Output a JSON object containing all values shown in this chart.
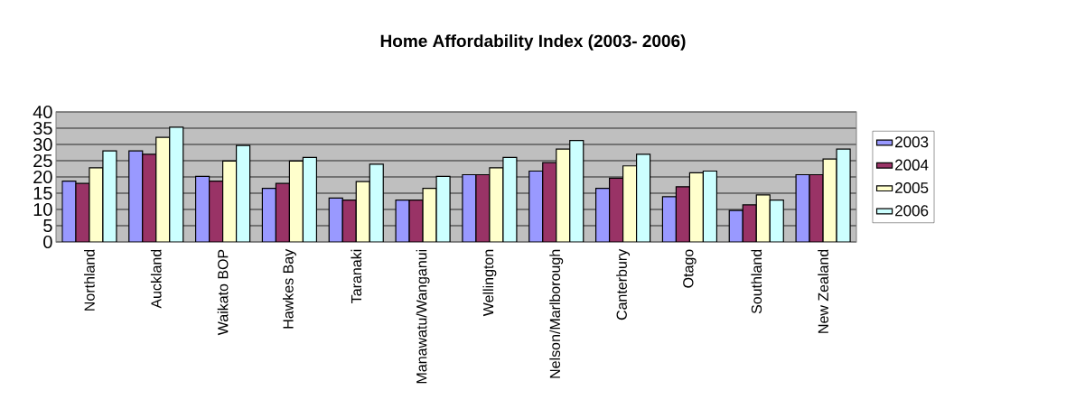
{
  "chart_data": {
    "type": "bar",
    "title": "Home Affordability Index (2003- 2006)",
    "categories": [
      "Northland",
      "Auckland",
      "Waikato BOP",
      "Hawkes Bay",
      "Taranaki",
      "Manawatu/Wanganui",
      "Wellington",
      "Nelson/Marlborough",
      "Canterbury",
      "Otago",
      "Southland",
      "New Zealand"
    ],
    "series": [
      {
        "name": "2003",
        "color": "#9999ff",
        "values": [
          18.7,
          28.0,
          20.2,
          16.5,
          13.5,
          12.9,
          20.7,
          21.8,
          16.5,
          13.9,
          9.7,
          20.7
        ]
      },
      {
        "name": "2004",
        "color": "#993366",
        "values": [
          18.0,
          27.0,
          18.7,
          18.0,
          12.9,
          12.9,
          20.7,
          24.4,
          19.6,
          17.0,
          11.4,
          20.7
        ]
      },
      {
        "name": "2005",
        "color": "#ffffcc",
        "values": [
          22.8,
          32.2,
          24.9,
          24.9,
          18.6,
          16.5,
          22.8,
          28.6,
          23.4,
          21.3,
          14.5,
          25.5
        ]
      },
      {
        "name": "2006",
        "color": "#ccffff",
        "values": [
          28.0,
          35.3,
          29.7,
          26.0,
          23.9,
          20.2,
          26.0,
          31.2,
          27.0,
          21.8,
          12.9,
          28.6
        ]
      }
    ],
    "ylim": [
      0,
      40
    ],
    "yticks": [
      0,
      5,
      10,
      15,
      20,
      25,
      30,
      35,
      40
    ],
    "grid": "y",
    "legend": "right"
  }
}
